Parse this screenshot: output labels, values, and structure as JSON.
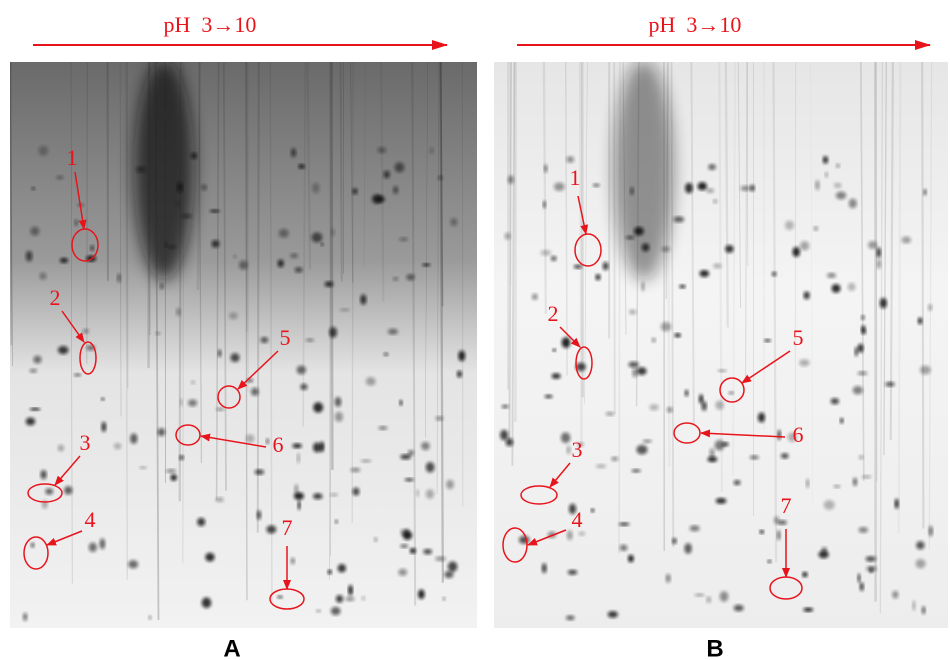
{
  "panels": [
    {
      "label": "A",
      "axis_label": "pH  3→10",
      "spots": [
        "1",
        "2",
        "3",
        "4",
        "5",
        "6",
        "7"
      ]
    },
    {
      "label": "B",
      "axis_label": "pH  3→10",
      "spots": [
        "1",
        "2",
        "3",
        "4",
        "5",
        "6",
        "7"
      ]
    }
  ]
}
